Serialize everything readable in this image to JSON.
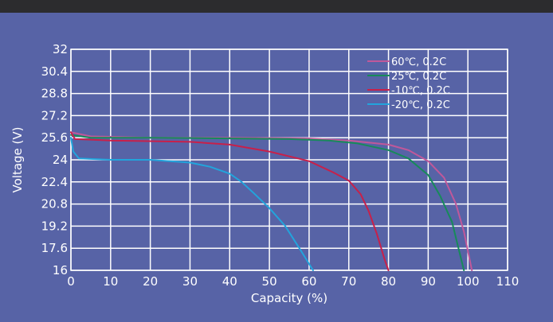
{
  "chart_data": {
    "type": "line",
    "xlabel": "Capacity (%)",
    "ylabel": "Voltage (V)",
    "xlim": [
      0,
      110
    ],
    "ylim": [
      16,
      32
    ],
    "x_ticks": [
      "0",
      "10",
      "20",
      "30",
      "40",
      "50",
      "60",
      "70",
      "80",
      "90",
      "100",
      "110"
    ],
    "y_ticks": [
      "32",
      "30.4",
      "28.8",
      "27.2",
      "25.6",
      "24",
      "22.4",
      "20.8",
      "19.2",
      "17.6",
      "16"
    ],
    "grid": true,
    "legend_position": "top-right",
    "series": [
      {
        "name": "60℃, 0.2C",
        "color": "#c0589a",
        "points": [
          [
            0,
            26.0
          ],
          [
            5,
            25.7
          ],
          [
            20,
            25.6
          ],
          [
            40,
            25.6
          ],
          [
            60,
            25.55
          ],
          [
            70,
            25.4
          ],
          [
            80,
            25.1
          ],
          [
            85,
            24.7
          ],
          [
            90,
            23.9
          ],
          [
            94,
            22.7
          ],
          [
            97,
            20.8
          ],
          [
            99,
            18.8
          ],
          [
            101,
            16.0
          ]
        ]
      },
      {
        "name": "25℃, 0.2C",
        "color": "#178a5a",
        "points": [
          [
            0,
            25.8
          ],
          [
            5,
            25.6
          ],
          [
            20,
            25.6
          ],
          [
            40,
            25.55
          ],
          [
            55,
            25.5
          ],
          [
            65,
            25.4
          ],
          [
            72,
            25.2
          ],
          [
            80,
            24.7
          ],
          [
            85,
            24.1
          ],
          [
            90,
            22.9
          ],
          [
            93,
            21.4
          ],
          [
            96,
            19.5
          ],
          [
            99,
            16.0
          ]
        ]
      },
      {
        "name": "-10℃, 0.2C",
        "color": "#c8204a",
        "points": [
          [
            0,
            26.0
          ],
          [
            1,
            25.5
          ],
          [
            10,
            25.4
          ],
          [
            30,
            25.3
          ],
          [
            40,
            25.1
          ],
          [
            50,
            24.6
          ],
          [
            60,
            23.9
          ],
          [
            66,
            23.1
          ],
          [
            70,
            22.5
          ],
          [
            73,
            21.5
          ],
          [
            75,
            20.3
          ],
          [
            77,
            18.7
          ],
          [
            79,
            16.8
          ],
          [
            80,
            16.0
          ]
        ]
      },
      {
        "name": "-20℃, 0.2C",
        "color": "#22a4dc",
        "points": [
          [
            0,
            25.6
          ],
          [
            0.6,
            24.6
          ],
          [
            2,
            24.1
          ],
          [
            10,
            24.0
          ],
          [
            20,
            24.0
          ],
          [
            30,
            23.8
          ],
          [
            35,
            23.5
          ],
          [
            40,
            23.0
          ],
          [
            43,
            22.4
          ],
          [
            46,
            21.6
          ],
          [
            50,
            20.5
          ],
          [
            54,
            19.2
          ],
          [
            58,
            17.4
          ],
          [
            61,
            16.0
          ]
        ]
      }
    ]
  }
}
